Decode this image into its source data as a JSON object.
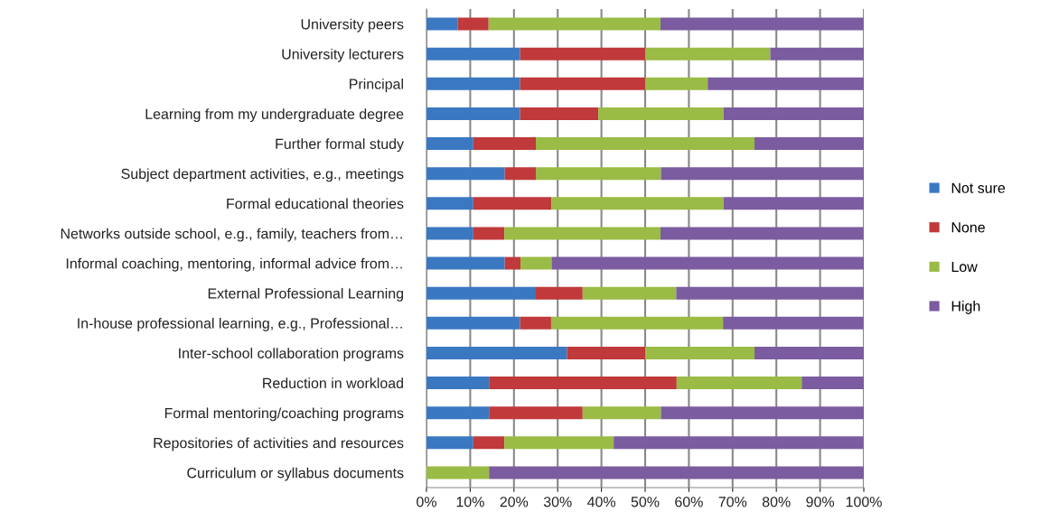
{
  "chart_data": {
    "type": "bar",
    "orientation": "horizontal",
    "stacked": true,
    "categories": [
      "University peers",
      "University lecturers",
      "Principal",
      "Learning from my undergraduate degree",
      "Further formal study",
      "Subject department activities, e.g., meetings",
      "Formal educational theories",
      "Networks outside school, e.g., family, teachers from…",
      "Informal coaching, mentoring, informal advice from…",
      "External Professional Learning",
      "In-house professional learning, e.g., Professional…",
      "Inter-school collaboration programs",
      "Reduction in workload",
      "Formal mentoring/coaching programs",
      "Repositories of activities and resources",
      "Curriculum or syllabus documents"
    ],
    "series": [
      {
        "name": "Not sure",
        "color": "#3a78c2",
        "values": [
          7.1,
          21.4,
          21.4,
          21.4,
          10.7,
          17.9,
          10.7,
          10.7,
          17.9,
          25,
          21.4,
          32.1,
          14.3,
          14.3,
          10.7,
          0
        ]
      },
      {
        "name": "None",
        "color": "#c0393b",
        "values": [
          7.1,
          28.6,
          28.6,
          17.9,
          14.3,
          7.1,
          17.9,
          7.1,
          3.6,
          10.7,
          7.1,
          17.9,
          42.9,
          21.4,
          7.1,
          0
        ]
      },
      {
        "name": "Low",
        "color": "#9abb45",
        "values": [
          39.3,
          28.6,
          14.3,
          28.6,
          50,
          28.6,
          39.3,
          35.7,
          7.1,
          21.4,
          39.3,
          25,
          28.6,
          17.9,
          25,
          14.3
        ]
      },
      {
        "name": "High",
        "color": "#7b5ca0",
        "values": [
          46.4,
          21.4,
          35.7,
          32.1,
          25,
          46.4,
          32.1,
          46.4,
          71.4,
          42.9,
          32.1,
          25,
          14.3,
          46.4,
          57.1,
          85.7
        ]
      }
    ],
    "xlim": [
      0,
      100
    ],
    "xticks": [
      {
        "value": 0,
        "label": "0%"
      },
      {
        "value": 10,
        "label": "10%"
      },
      {
        "value": 20,
        "label": "20%"
      },
      {
        "value": 30,
        "label": "30%"
      },
      {
        "value": 40,
        "label": "40%"
      },
      {
        "value": 50,
        "label": "50%"
      },
      {
        "value": 60,
        "label": "60%"
      },
      {
        "value": 70,
        "label": "70%"
      },
      {
        "value": 80,
        "label": "80%"
      },
      {
        "value": 90,
        "label": "90%"
      },
      {
        "value": 100,
        "label": "100%"
      }
    ],
    "grid": "x",
    "legend": "right"
  }
}
